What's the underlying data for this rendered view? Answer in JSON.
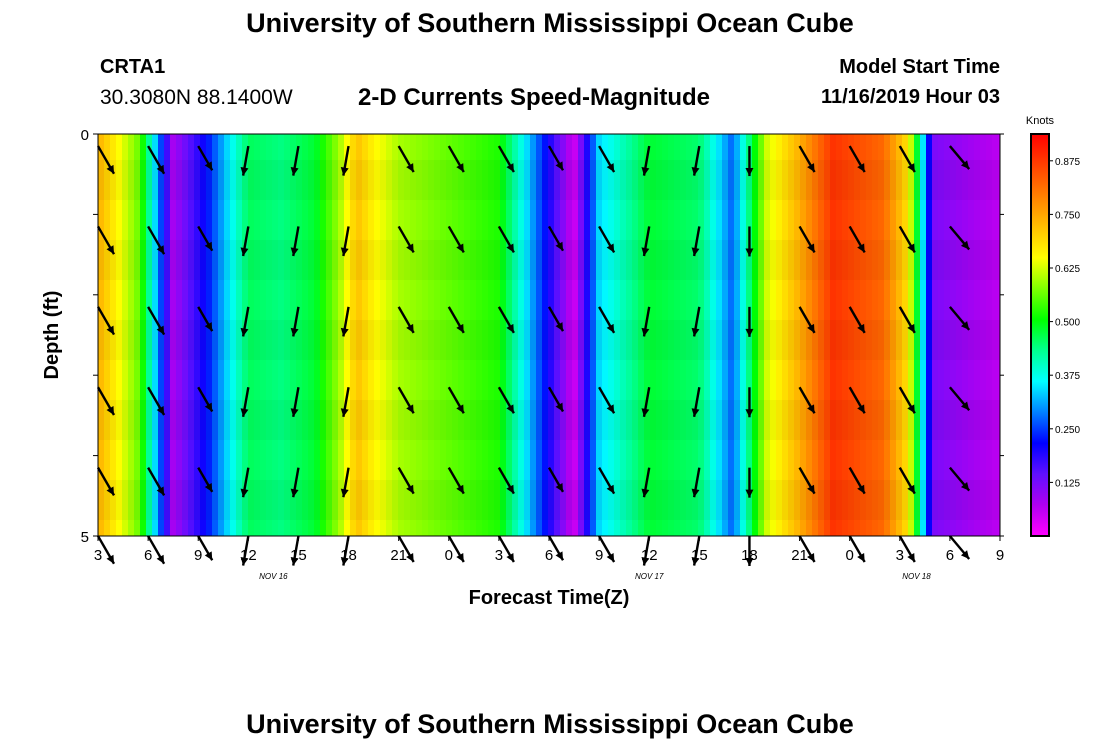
{
  "header": {
    "title": "University of Southern Mississippi Ocean Cube",
    "station": "CRTA1",
    "coords": "30.3080N 88.1400W",
    "chart_title": "2-D Currents Speed-Magnitude",
    "model_start_label": "Model Start Time",
    "model_start_value": "11/16/2019 Hour 03"
  },
  "footer": {
    "title": "University of Southern Mississippi Ocean Cube"
  },
  "colors": {
    "palette": [
      "#ff00ff",
      "#b000f0",
      "#6010ff",
      "#0000ff",
      "#0080ff",
      "#00ffff",
      "#00ff90",
      "#00ff00",
      "#80ff00",
      "#ffff00",
      "#ffc000",
      "#ff8000",
      "#ff4000",
      "#ff0000"
    ]
  },
  "chart_data": {
    "type": "heatmap",
    "title": "2-D Currents Speed-Magnitude",
    "xlabel": "Forecast Time(Z)",
    "ylabel": "Depth (ft)",
    "x_ticks": [
      "3",
      "6",
      "9",
      "12",
      "15",
      "18",
      "21",
      "0",
      "3",
      "6",
      "9",
      "12",
      "15",
      "18",
      "21",
      "0",
      "3",
      "6",
      "9"
    ],
    "x_tick_hours": [
      0,
      3,
      6,
      9,
      12,
      15,
      18,
      21,
      24,
      27,
      30,
      33,
      36,
      39,
      42,
      45,
      48,
      51,
      54
    ],
    "date_labels": [
      {
        "text": "NOV 16",
        "hour": 10.5
      },
      {
        "text": "NOV 17",
        "hour": 33
      },
      {
        "text": "NOV 18",
        "hour": 49
      }
    ],
    "xlim_hours": [
      0,
      54
    ],
    "y_ticks": [
      "0",
      "5"
    ],
    "ylim": [
      0,
      5
    ],
    "colorbar": {
      "label": "Knots",
      "ticks": [
        "0.875",
        "0.750",
        "0.625",
        "0.500",
        "0.375",
        "0.250",
        "0.125"
      ],
      "tick_values": [
        0.875,
        0.75,
        0.625,
        0.5,
        0.375,
        0.25,
        0.125
      ],
      "range": [
        0,
        0.9375
      ]
    },
    "hours": [
      0,
      3,
      6,
      9,
      12,
      15,
      18,
      21,
      24,
      27,
      30,
      33,
      36,
      39,
      42,
      45,
      48,
      51,
      54
    ],
    "speed_profile": [
      0.74,
      0.56,
      0.08,
      0.22,
      0.46,
      0.44,
      0.48,
      0.6,
      0.72,
      0.66,
      0.6,
      0.56,
      0.52,
      0.04,
      0.34,
      0.48,
      0.45,
      0.27,
      0.62,
      0.74,
      0.88,
      0.82,
      0.68,
      0.12,
      0.06
    ],
    "speed_profile_hours": [
      0,
      2.5,
      4.5,
      6.5,
      9,
      11,
      13,
      14.5,
      15.5,
      16.5,
      18,
      21,
      24,
      28.5,
      30,
      33,
      36,
      38,
      40,
      42,
      44,
      47,
      48.5,
      50,
      54
    ],
    "arrow_hours": [
      0,
      3,
      6,
      9,
      12,
      15,
      18,
      21,
      24,
      27,
      30,
      33,
      36,
      39,
      42,
      45,
      48,
      51
    ],
    "arrow_depths": [
      0.15,
      1.15,
      2.15,
      3.15,
      4.15,
      5.0
    ],
    "arrow_dir_deg": [
      150,
      150,
      150,
      190,
      190,
      190,
      150,
      150,
      150,
      150,
      150,
      190,
      190,
      180,
      150,
      150,
      150,
      140
    ],
    "arrow_len_px": [
      32,
      32,
      28,
      30,
      30,
      30,
      30,
      30,
      30,
      28,
      30,
      30,
      30,
      30,
      30,
      30,
      30,
      30
    ]
  }
}
